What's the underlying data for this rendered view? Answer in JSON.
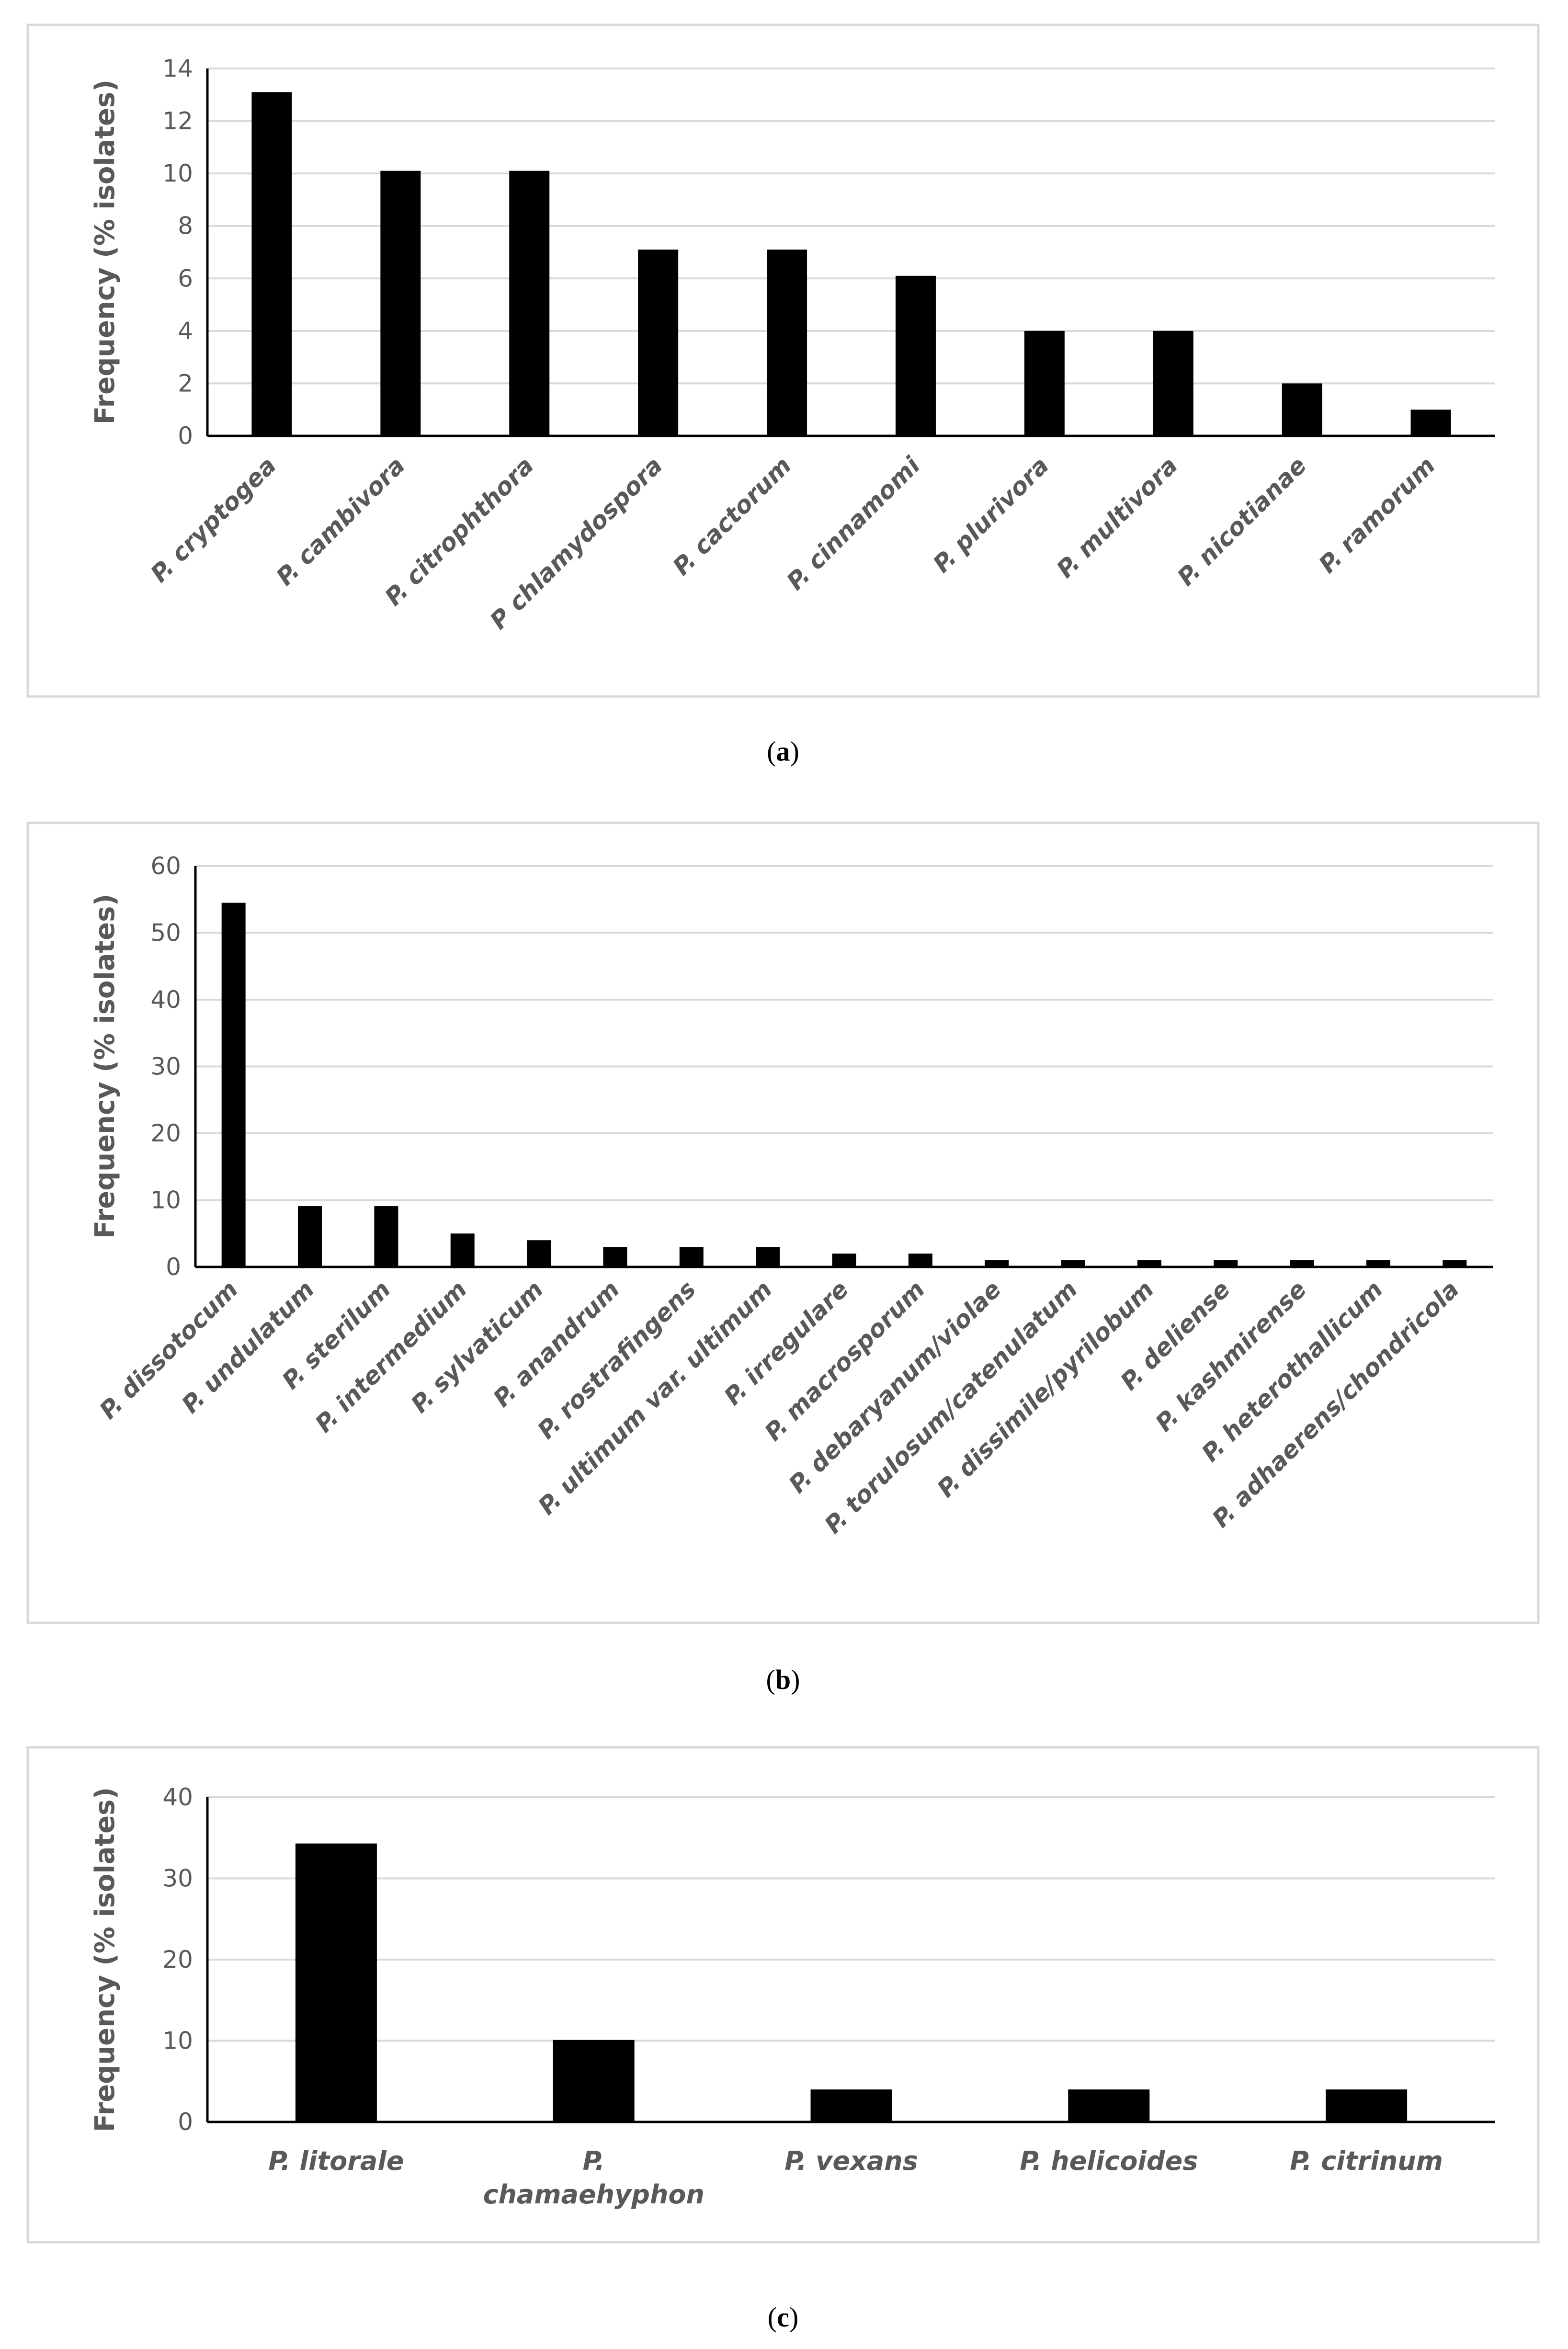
{
  "chart_data": [
    {
      "type": "bar",
      "panel_label": "a",
      "title": "",
      "xlabel": "",
      "ylabel": "Frequency (% isolates)",
      "ylim": [
        0,
        14
      ],
      "yticks": [
        0,
        2,
        4,
        6,
        8,
        10,
        12,
        14
      ],
      "grid": true,
      "categories": [
        "P. cryptogea",
        "P. cambivora",
        "P. citrophthora",
        "P chlamydospora",
        "P. cactorum",
        "P. cinnamomi",
        "P. plurivora",
        "P. multivora",
        "P. nicotianae",
        "P. ramorum"
      ],
      "values": [
        13.1,
        10.1,
        10.1,
        7.1,
        7.1,
        6.1,
        4.0,
        4.0,
        2.0,
        1.0
      ],
      "bar_color": "#000000"
    },
    {
      "type": "bar",
      "panel_label": "b",
      "title": "",
      "xlabel": "",
      "ylabel": "Frequency (% isolates)",
      "ylim": [
        0,
        60
      ],
      "yticks": [
        0,
        10,
        20,
        30,
        40,
        50,
        60
      ],
      "grid": true,
      "categories": [
        "P. dissotocum",
        "P. undulatum",
        "P. sterilum",
        "P. intermedium",
        "P. sylvaticum",
        "P. anandrum",
        "P. rostrafingens",
        "P. ultimum var. ultimum",
        "P. irregulare",
        "P. macrosporum",
        "P. debaryanum/violae",
        "P. torulosum/catenulatum",
        "P. dissimile/pyrilobum",
        "P. deliense",
        "P. kashmirense",
        "P. heterothallicum",
        "P. adhaerens/chondricola"
      ],
      "values": [
        54.5,
        9.1,
        9.1,
        5.0,
        4.0,
        3.0,
        3.0,
        3.0,
        2.0,
        2.0,
        1.0,
        1.0,
        1.0,
        1.0,
        1.0,
        1.0,
        1.0
      ],
      "bar_color": "#000000"
    },
    {
      "type": "bar",
      "panel_label": "c",
      "title": "",
      "xlabel": "",
      "ylabel": "Frequency (% isolates)",
      "ylim": [
        0,
        40
      ],
      "yticks": [
        0,
        10,
        20,
        30,
        40
      ],
      "grid": true,
      "categories": [
        "P. litorale",
        "P. chamaehyphon",
        "P. vexans",
        "P. helicoides",
        "P. citrinum"
      ],
      "category_lines": [
        [
          "P. litorale"
        ],
        [
          "P.",
          "chamaehyphon"
        ],
        [
          "P. vexans"
        ],
        [
          "P. helicoides"
        ],
        [
          "P. citrinum"
        ]
      ],
      "values": [
        34.3,
        10.1,
        4.0,
        4.0,
        4.0
      ],
      "bar_color": "#000000"
    }
  ]
}
